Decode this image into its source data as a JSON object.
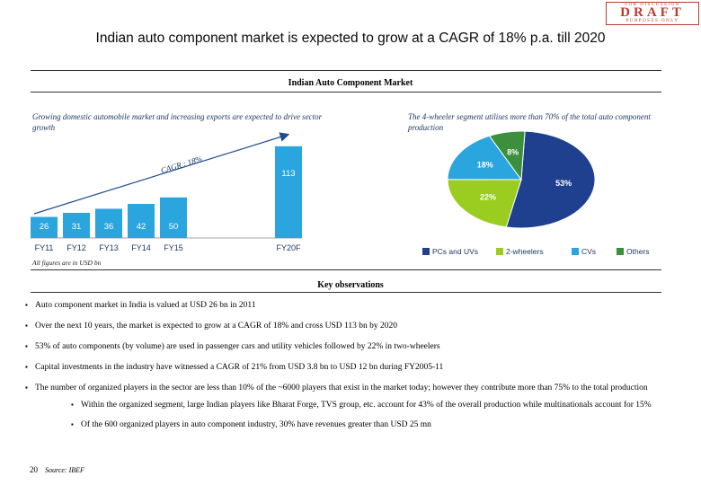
{
  "title": "Indian auto component market is expected to grow at a CAGR of 18% p.a. till 2020",
  "stamp": {
    "top": "FOR        DISCUSSION",
    "mid": "DRAFT",
    "bottom": "PURPOSES       ONLY"
  },
  "section_title": "Indian Auto Component Market",
  "left_note": "Growing domestic automobile market and increasing exports are expected to drive sector growth",
  "right_note": "The 4-wheeler segment utilises more than 70% of the total auto component production",
  "cagr_label": "CAGR : 18%",
  "units_note": "All figures are in USD bn",
  "colors": {
    "bar": "#2aa5dd",
    "arrow": "#1f4e8f",
    "pie_pc": "#1f3f8f",
    "pie_2w": "#9acd1f",
    "pie_cv": "#2aa5dd",
    "pie_other": "#3c8f3c"
  },
  "chart_data": [
    {
      "type": "bar",
      "categories": [
        "FY11",
        "FY12",
        "FY13",
        "FY14",
        "FY15",
        "FY20F"
      ],
      "values": [
        26,
        31,
        36,
        42,
        50,
        113
      ],
      "data_labels": [
        "26",
        "31",
        "36",
        "42",
        "50",
        "113"
      ],
      "ylim": [
        0,
        125
      ],
      "grid": false,
      "xlabel": "",
      "ylabel": ""
    },
    {
      "type": "pie",
      "labels": [
        "PCs and UVs",
        "2-wheelers",
        "CVs",
        "Others"
      ],
      "values": [
        53,
        22,
        18,
        8
      ],
      "data_labels": [
        "53%",
        "22%",
        "18%",
        "8%"
      ],
      "legend_position": "bottom"
    }
  ],
  "observations": {
    "title": "Key observations",
    "items": [
      "Auto component market in India is valued at USD 26 bn in 2011",
      "Over the next 10 years, the market is expected to grow at a CAGR of 18% and cross USD 113 bn by 2020",
      "53% of auto components (by volume) are used in passenger cars and utility vehicles followed by 22% in two-wheelers",
      "Capital investments in the industry have witnessed a CAGR of 21% from USD 3.8 bn to USD 12 bn during FY2005-11",
      "The number of organized players in the sector are less than 10% of the ~6000 players that exist in the market today; however they contribute more than 75% to the total production"
    ],
    "sub_items": [
      "Within the organized segment, large Indian players like Bharat Forge, TVS group, etc. account for 43% of the overall production while multinationals account for 15%",
      "Of the 600 organized players in auto component industry, 30% have revenues greater than USD 25 mn"
    ]
  },
  "page_number": "20",
  "source": "Source: IBEF"
}
